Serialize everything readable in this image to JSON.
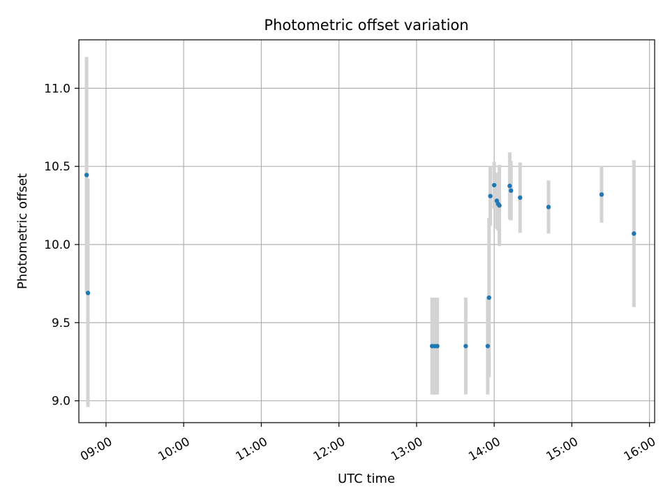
{
  "chart_data": {
    "type": "scatter",
    "title": "Photometric offset variation",
    "xlabel": "UTC time",
    "ylabel": "Photometric offset",
    "grid": true,
    "x_ticks": [
      "09:00",
      "10:00",
      "11:00",
      "12:00",
      "13:00",
      "14:00",
      "15:00",
      "16:00"
    ],
    "y_ticks": [
      "9.0",
      "9.5",
      "10.0",
      "10.5",
      "11.0"
    ],
    "xlim": [
      "08:39",
      "16:04"
    ],
    "ylim": [
      8.86,
      11.31
    ],
    "errorbar_color": "#d3d3d3",
    "point_color": "#1f77b4",
    "points": [
      {
        "x": "08:45",
        "y": 10.445,
        "err": 0.755
      },
      {
        "x": "08:46",
        "y": 9.69,
        "err": 0.73
      },
      {
        "x": "13:12",
        "y": 9.35,
        "err": 0.31
      },
      {
        "x": "13:14",
        "y": 9.35,
        "err": 0.31
      },
      {
        "x": "13:16",
        "y": 9.35,
        "err": 0.31
      },
      {
        "x": "13:38",
        "y": 9.35,
        "err": 0.31
      },
      {
        "x": "13:55",
        "y": 9.35,
        "err": 0.31
      },
      {
        "x": "13:56",
        "y": 9.66,
        "err": 0.51
      },
      {
        "x": "13:57",
        "y": 10.31,
        "err": 0.19
      },
      {
        "x": "14:00",
        "y": 10.38,
        "err": 0.15
      },
      {
        "x": "14:02",
        "y": 10.28,
        "err": 0.18
      },
      {
        "x": "14:03",
        "y": 10.26,
        "err": 0.17
      },
      {
        "x": "14:04",
        "y": 10.25,
        "err": 0.26
      },
      {
        "x": "14:12",
        "y": 10.375,
        "err": 0.215
      },
      {
        "x": "14:13",
        "y": 10.345,
        "err": 0.19
      },
      {
        "x": "14:20",
        "y": 10.3,
        "err": 0.225
      },
      {
        "x": "14:42",
        "y": 10.24,
        "err": 0.17
      },
      {
        "x": "15:23",
        "y": 10.32,
        "err": 0.18
      },
      {
        "x": "15:48",
        "y": 10.07,
        "err": 0.47
      }
    ]
  }
}
